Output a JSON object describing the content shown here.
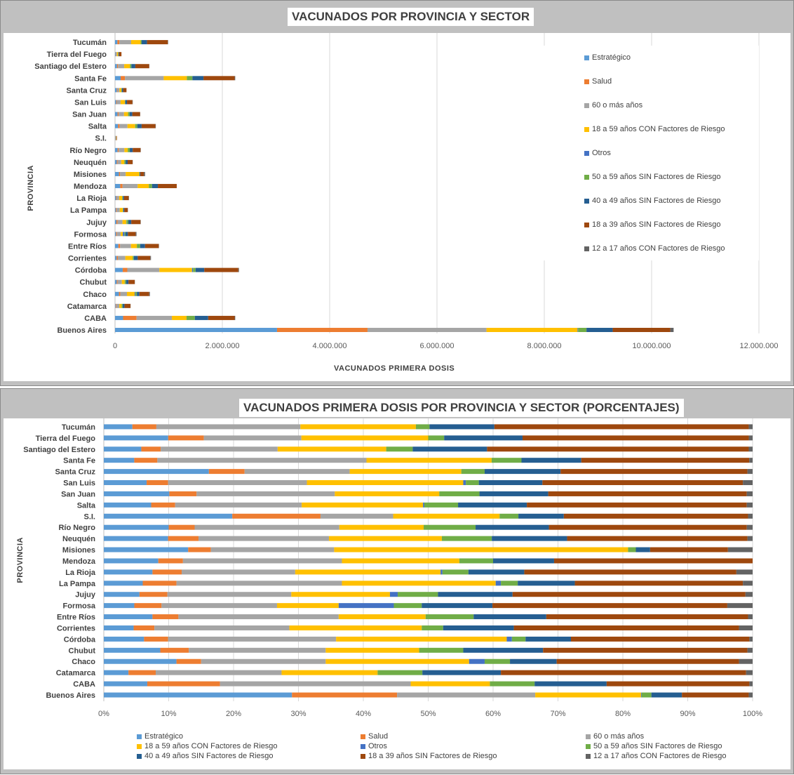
{
  "provinces": [
    "Buenos Aires",
    "CABA",
    "Catamarca",
    "Chaco",
    "Chubut",
    "Córdoba",
    "Corrientes",
    "Entre Ríos",
    "Formosa",
    "Jujuy",
    "La Pampa",
    "La Rioja",
    "Mendoza",
    "Misiones",
    "Neuquén",
    "Río Negro",
    "S.I.",
    "Salta",
    "San Juan",
    "San Luis",
    "Santa Cruz",
    "Santa Fe",
    "Santiago del Estero",
    "Tierra del Fuego",
    "Tucumán"
  ],
  "series": [
    {
      "name": "Estratégico",
      "color": "#5b9bd5"
    },
    {
      "name": "Salud",
      "color": "#ed7d31"
    },
    {
      "name": "60 o más años",
      "color": "#a5a5a5"
    },
    {
      "name": "18 a 59 años CON Factores de Riesgo",
      "color": "#ffc000"
    },
    {
      "name": "Otros",
      "color": "#4472c4"
    },
    {
      "name": "50 a 59 años SIN Factores de Riesgo",
      "color": "#70ad47"
    },
    {
      "name": "40 a 49 años SIN Factores de Riesgo",
      "color": "#255e91"
    },
    {
      "name": "18 a 39 años SIN Factores de Riesgo",
      "color": "#9e480e"
    },
    {
      "name": "12 a 17 años CON Factores de Riesgo",
      "color": "#636363"
    }
  ],
  "chart_data": [
    {
      "type": "bar",
      "orientation": "horizontal",
      "stacked": true,
      "title": "VACUNADOS POR PROVINCIA Y SECTOR",
      "xlabel": "VACUNADOS PRIMERA  DOSIS",
      "ylabel": "PROVINCIA",
      "xlim": [
        0,
        12000000
      ],
      "x_ticks": [
        "0",
        "2.000.000",
        "4.000.000",
        "6.000.000",
        "8.000.000",
        "10.000.000",
        "12.000.000"
      ],
      "legend_position": "right",
      "grid": true,
      "totals": [
        10410000,
        2240000,
        290000,
        650000,
        370000,
        2310000,
        670000,
        820000,
        400000,
        480000,
        240000,
        260000,
        1150000,
        560000,
        330000,
        480000,
        35000,
        760000,
        470000,
        330000,
        215000,
        2240000,
        640000,
        120000,
        990000
      ],
      "shares": [
        [
          29.0,
          16.2,
          21.3,
          16.3,
          0.1,
          1.5,
          4.7,
          10.3,
          0.6
        ],
        [
          6.7,
          11.2,
          29.4,
          12.2,
          0.0,
          6.9,
          11.1,
          22.0,
          0.5
        ],
        [
          3.8,
          4.2,
          19.4,
          14.8,
          0.0,
          6.9,
          12.1,
          37.8,
          1.0
        ],
        [
          11.2,
          3.8,
          19.2,
          22.1,
          2.4,
          3.9,
          7.2,
          28.1,
          2.1
        ],
        [
          8.7,
          4.4,
          21.1,
          14.4,
          0.0,
          6.8,
          12.3,
          31.5,
          0.8
        ],
        [
          6.2,
          3.7,
          25.9,
          26.3,
          0.8,
          2.1,
          7.0,
          27.5,
          0.5
        ],
        [
          4.6,
          3.2,
          20.8,
          20.4,
          0.0,
          3.3,
          10.9,
          34.7,
          2.1
        ],
        [
          7.5,
          4.0,
          24.7,
          13.4,
          0.0,
          7.4,
          11.2,
          31.1,
          0.7
        ],
        [
          4.7,
          4.2,
          17.8,
          9.5,
          8.5,
          4.3,
          10.9,
          36.2,
          3.9
        ],
        [
          5.5,
          4.3,
          19.1,
          15.2,
          1.2,
          6.2,
          11.5,
          35.9,
          1.1
        ],
        [
          6.0,
          5.2,
          25.5,
          23.7,
          0.8,
          2.6,
          8.8,
          25.9,
          1.5
        ],
        [
          7.5,
          4.5,
          17.5,
          22.4,
          0.3,
          4.0,
          8.6,
          32.7,
          2.5
        ],
        [
          8.4,
          3.8,
          24.5,
          18.1,
          0.0,
          5.2,
          9.4,
          30.6,
          0.0
        ],
        [
          13.0,
          3.5,
          19.0,
          45.3,
          0.0,
          1.2,
          2.2,
          12.0,
          3.8
        ],
        [
          9.9,
          4.7,
          20.1,
          17.4,
          0.0,
          7.7,
          11.6,
          27.8,
          0.8
        ],
        [
          10.0,
          4.0,
          22.3,
          13.0,
          0.0,
          8.0,
          11.3,
          30.5,
          0.9
        ],
        [
          19.8,
          13.6,
          11.2,
          16.4,
          0.0,
          2.9,
          7.0,
          28.4,
          0.7
        ],
        [
          7.3,
          3.7,
          19.5,
          18.7,
          0.2,
          5.2,
          10.6,
          33.9,
          0.9
        ],
        [
          10.1,
          4.2,
          21.3,
          16.1,
          0.0,
          6.2,
          10.6,
          30.6,
          0.9
        ],
        [
          6.6,
          3.3,
          21.4,
          24.1,
          0.4,
          2.0,
          9.8,
          30.9,
          1.5
        ],
        [
          16.2,
          5.5,
          16.2,
          17.2,
          0.0,
          3.6,
          11.7,
          28.8,
          0.8
        ],
        [
          5.4,
          4.1,
          37.1,
          22.2,
          0.0,
          5.3,
          10.6,
          29.8,
          0.6
        ],
        [
          5.8,
          3.0,
          18.1,
          16.8,
          0.0,
          4.1,
          11.5,
          40.5,
          0.6
        ],
        [
          10.1,
          5.6,
          15.3,
          19.9,
          0.0,
          2.5,
          12.3,
          35.5,
          0.6
        ],
        [
          4.4,
          3.7,
          22.2,
          17.8,
          0.0,
          2.1,
          10.0,
          39.2,
          0.6
        ]
      ]
    },
    {
      "type": "bar",
      "orientation": "horizontal",
      "stacked": true,
      "percent": true,
      "title": "VACUNADOS PRIMERA DOSIS POR PROVINCIA Y SECTOR (PORCENTAJES)",
      "ylabel": "PROVINCIA",
      "xlim": [
        0,
        100
      ],
      "x_ticks": [
        "0%",
        "10%",
        "20%",
        "30%",
        "40%",
        "50%",
        "60%",
        "70%",
        "80%",
        "90%",
        "100%"
      ],
      "legend_position": "bottom",
      "grid": true
    }
  ]
}
